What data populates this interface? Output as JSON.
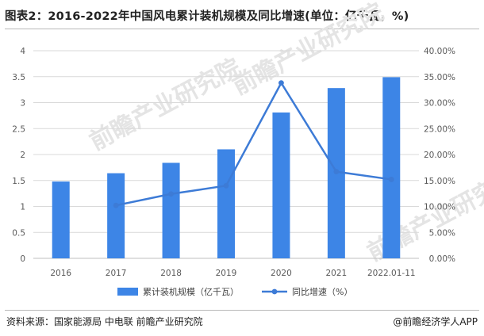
{
  "header": {
    "title": "图表2：2016-2022年中国风电累计装机规模及同比增速(单位：亿千瓦，%)"
  },
  "footer": {
    "source": "资料来源：国家能源局 中电联 前瞻产业研究院",
    "brand": "@前瞻经济学人APP"
  },
  "watermark": {
    "text": "前瞻产业研究院"
  },
  "colors": {
    "bar": "#3d85e6",
    "line": "#3d7bd6",
    "grid": "#d9d9d9"
  },
  "chart_data": {
    "type": "bar",
    "categories": [
      "2016",
      "2017",
      "2018",
      "2019",
      "2020",
      "2021",
      "2022.01-11"
    ],
    "series": [
      {
        "name": "累计装机规模（亿千瓦）",
        "type": "bar",
        "axis": "left",
        "values": [
          1.48,
          1.64,
          1.84,
          2.1,
          2.81,
          3.28,
          3.49
        ]
      },
      {
        "name": "同比增速（%）",
        "type": "line",
        "axis": "right",
        "values": [
          null,
          10.2,
          12.4,
          14.0,
          33.8,
          16.7,
          15.2
        ]
      }
    ],
    "y_left": {
      "ylim": [
        0,
        4
      ],
      "ticks": [
        "0",
        "0.5",
        "1",
        "1.5",
        "2",
        "2.5",
        "3",
        "3.5",
        "4"
      ]
    },
    "y_right": {
      "ylim": [
        0,
        40
      ],
      "ticks": [
        "0.00%",
        "5.00%",
        "10.00%",
        "15.00%",
        "20.00%",
        "25.00%",
        "30.00%",
        "35.00%",
        "40.00%"
      ]
    },
    "grid": true,
    "legend_position": "bottom"
  }
}
